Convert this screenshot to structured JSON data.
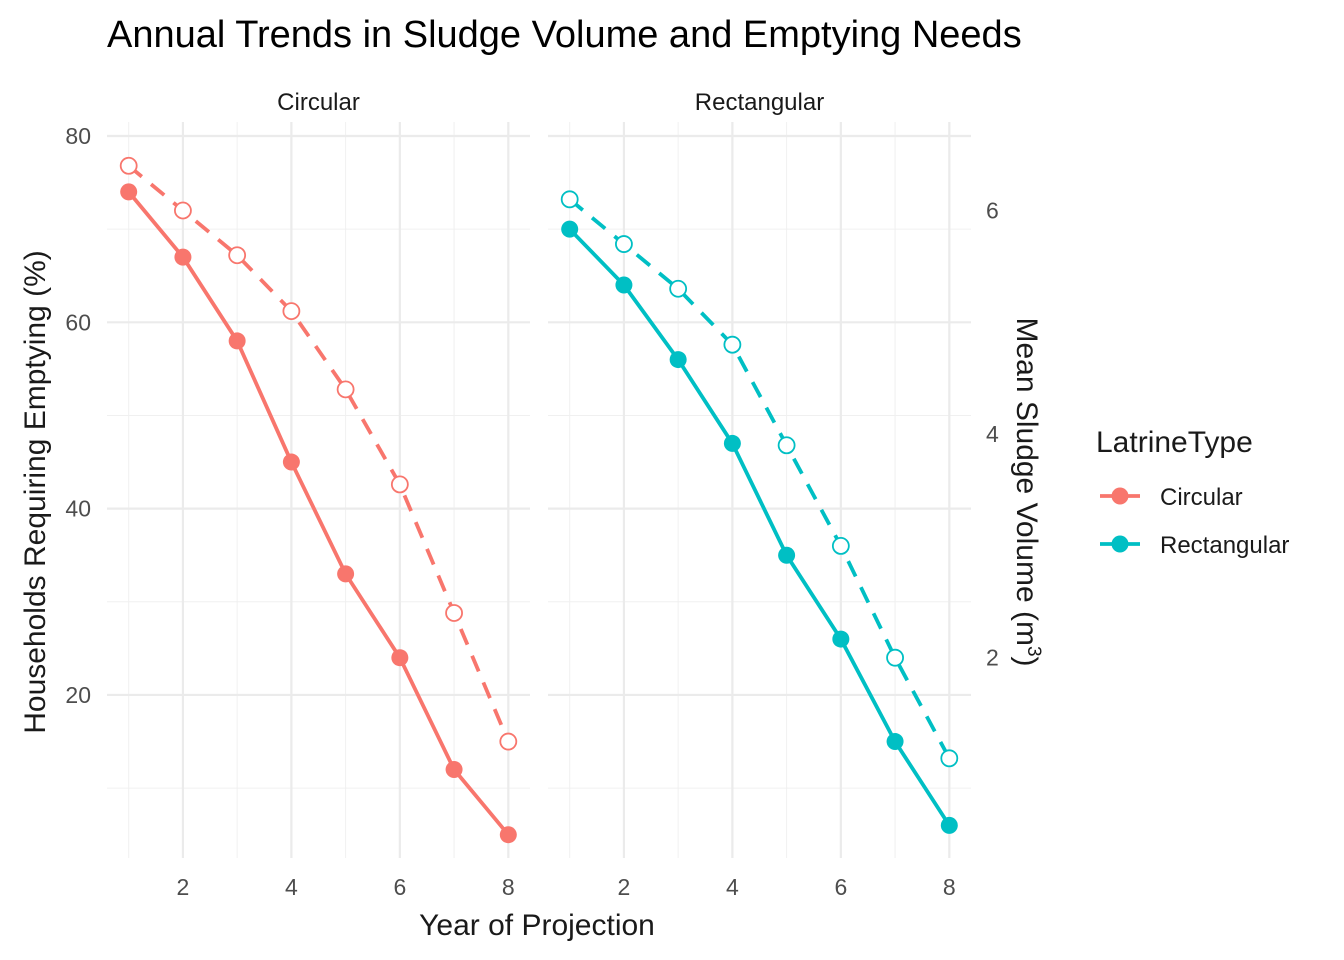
{
  "chart_data": {
    "type": "line",
    "title": "Annual Trends in Sludge Volume and Emptying Needs",
    "xlabel": "Year of Projection",
    "ylabel": "Households Requiring Emptying (%)",
    "y2label_main": "Mean Sludge Volume (m",
    "y2label_sup": "3",
    "y2label_close": ")",
    "facets": [
      "Circular",
      "Rectangular"
    ],
    "x": [
      1,
      2,
      3,
      4,
      5,
      6,
      7,
      8
    ],
    "xticks": [
      2,
      4,
      6,
      8
    ],
    "xticks_text": [
      "2",
      "4",
      "6",
      "8"
    ],
    "xlim": [
      0.6,
      8.4
    ],
    "ylim": [
      2.5,
      81.5
    ],
    "yticks": [
      20,
      40,
      60,
      80
    ],
    "yticks_text": [
      "20",
      "40",
      "60",
      "80"
    ],
    "y2ticks": [
      2,
      4,
      6
    ],
    "y2ticks_text": [
      "2",
      "4",
      "6"
    ],
    "y2_scale_factor": 12,
    "grid": true,
    "legend": {
      "title": "LatrineType",
      "position": "right",
      "entries": [
        "Circular",
        "Rectangular"
      ]
    },
    "series": [
      {
        "facet": "Circular",
        "name": "Circular",
        "measure": "households_pct",
        "style": "solid",
        "color": "#f8766d",
        "values": [
          74,
          67,
          58,
          45,
          33,
          24,
          12,
          5
        ]
      },
      {
        "facet": "Circular",
        "name": "Circular",
        "measure": "sludge_volume_m3",
        "style": "dashed",
        "color": "#f8766d",
        "values": [
          6.4,
          6.0,
          5.6,
          5.1,
          4.4,
          3.55,
          2.4,
          1.25
        ]
      },
      {
        "facet": "Rectangular",
        "name": "Rectangular",
        "measure": "households_pct",
        "style": "solid",
        "color": "#00bfc4",
        "values": [
          70,
          64,
          56,
          47,
          35,
          26,
          15,
          6
        ]
      },
      {
        "facet": "Rectangular",
        "name": "Rectangular",
        "measure": "sludge_volume_m3",
        "style": "dashed",
        "color": "#00bfc4",
        "values": [
          6.1,
          5.7,
          5.3,
          4.8,
          3.9,
          3.0,
          2.0,
          1.1
        ]
      }
    ]
  }
}
